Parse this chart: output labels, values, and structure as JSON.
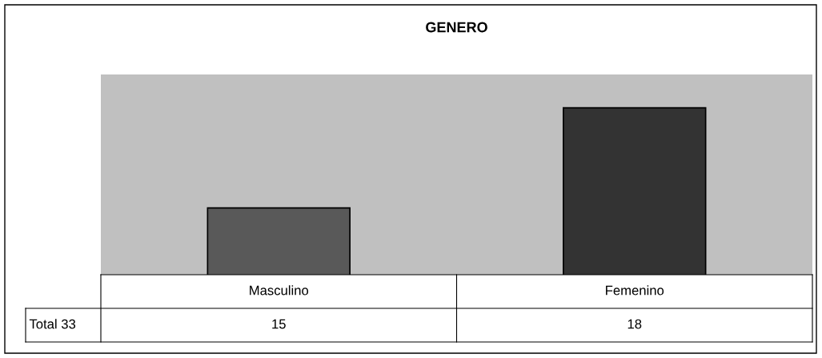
{
  "chart_data": {
    "type": "bar",
    "title": "GENERO",
    "categories": [
      "Masculino",
      "Femenino"
    ],
    "series": [
      {
        "name": "Total 33",
        "colors": [
          "#595959",
          "#333333"
        ],
        "values": [
          15,
          18
        ]
      }
    ],
    "ylim": [
      13,
      19
    ],
    "tick_labels": "x",
    "data_labels": true
  }
}
